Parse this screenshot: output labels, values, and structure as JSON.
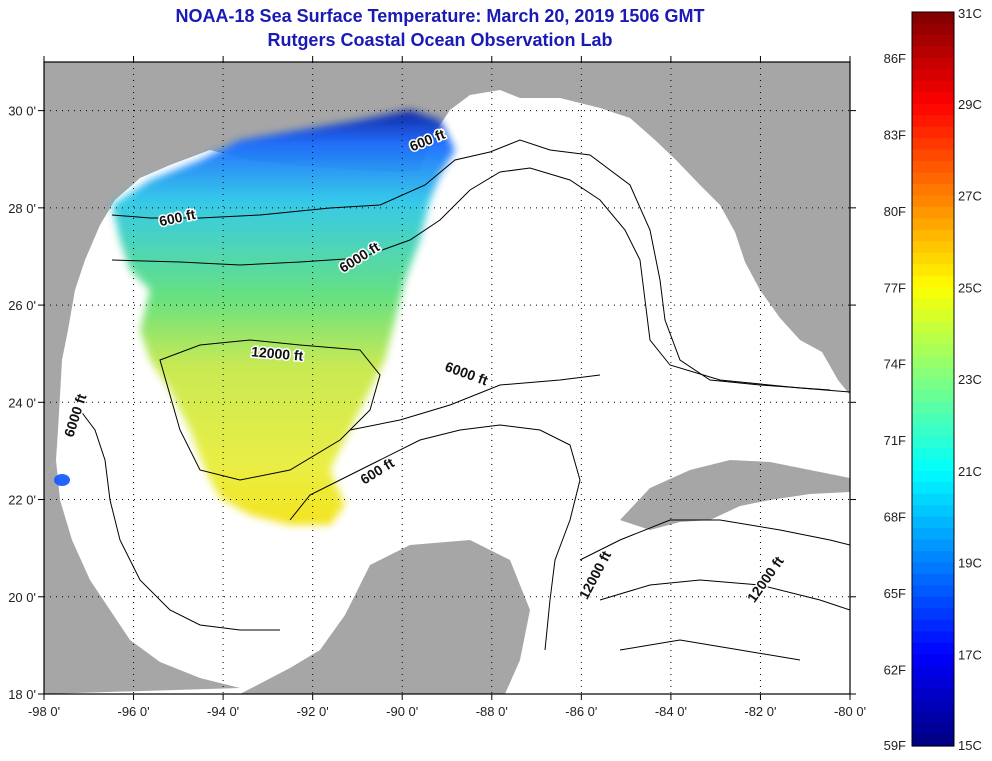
{
  "title": "NOAA-18 Sea Surface Temperature:  March 20, 2019 1506 GMT",
  "subtitle": "Rutgers Coastal Ocean Observation Lab",
  "map": {
    "lon_range": [
      -98,
      -80
    ],
    "lat_range": [
      18,
      31
    ],
    "lon_ticks": [
      {
        "value": -98,
        "label": "-98 0'"
      },
      {
        "value": -96,
        "label": "-96 0'"
      },
      {
        "value": -94,
        "label": "-94 0'"
      },
      {
        "value": -92,
        "label": "-92 0'"
      },
      {
        "value": -90,
        "label": "-90 0'"
      },
      {
        "value": -88,
        "label": "-88 0'"
      },
      {
        "value": -86,
        "label": "-86 0'"
      },
      {
        "value": -84,
        "label": "-84 0'"
      },
      {
        "value": -82,
        "label": "-82 0'"
      },
      {
        "value": -80,
        "label": "-80 0'"
      }
    ],
    "lat_ticks": [
      {
        "value": 18,
        "label": "18 0'"
      },
      {
        "value": 20,
        "label": "20 0'"
      },
      {
        "value": 22,
        "label": "22 0'"
      },
      {
        "value": 24,
        "label": "24 0'"
      },
      {
        "value": 26,
        "label": "26 0'"
      },
      {
        "value": 28,
        "label": "28 0'"
      },
      {
        "value": 30,
        "label": "30 0'"
      }
    ],
    "land_color": "#a6a6a6",
    "water_color": "#ffffff",
    "contour_labels": [
      {
        "text": "600 ft",
        "lon": -89.4,
        "lat": 29.3,
        "rot": -22
      },
      {
        "text": "600 ft",
        "lon": -95.0,
        "lat": 27.7,
        "rot": -12
      },
      {
        "text": "6000 ft",
        "lon": -90.9,
        "lat": 26.9,
        "rot": -32
      },
      {
        "text": "12000 ft",
        "lon": -92.8,
        "lat": 24.9,
        "rot": 5
      },
      {
        "text": "6000 ft",
        "lon": -88.6,
        "lat": 24.5,
        "rot": 20
      },
      {
        "text": "6000 ft",
        "lon": -97.2,
        "lat": 23.7,
        "rot": -72
      },
      {
        "text": "600 ft",
        "lon": -90.5,
        "lat": 22.5,
        "rot": -32
      },
      {
        "text": "12000 ft",
        "lon": -85.6,
        "lat": 20.4,
        "rot": -62
      },
      {
        "text": "12000 ft",
        "lon": -81.8,
        "lat": 20.3,
        "rot": -55
      }
    ]
  },
  "colorbar": {
    "c_range": [
      15,
      31
    ],
    "celsius_labels": [
      {
        "value": 31,
        "label": "31C"
      },
      {
        "value": 29,
        "label": "29C"
      },
      {
        "value": 27,
        "label": "27C"
      },
      {
        "value": 25,
        "label": "25C"
      },
      {
        "value": 23,
        "label": "23C"
      },
      {
        "value": 21,
        "label": "21C"
      },
      {
        "value": 19,
        "label": "19C"
      },
      {
        "value": 17,
        "label": "17C"
      },
      {
        "value": 15,
        "label": "15C"
      }
    ],
    "fahrenheit_labels": [
      {
        "value": 86,
        "label": "86F"
      },
      {
        "value": 83,
        "label": "83F"
      },
      {
        "value": 80,
        "label": "80F"
      },
      {
        "value": 77,
        "label": "77F"
      },
      {
        "value": 74,
        "label": "74F"
      },
      {
        "value": 71,
        "label": "71F"
      },
      {
        "value": 68,
        "label": "68F"
      },
      {
        "value": 65,
        "label": "65F"
      },
      {
        "value": 62,
        "label": "62F"
      },
      {
        "value": 59,
        "label": "59F"
      }
    ]
  }
}
